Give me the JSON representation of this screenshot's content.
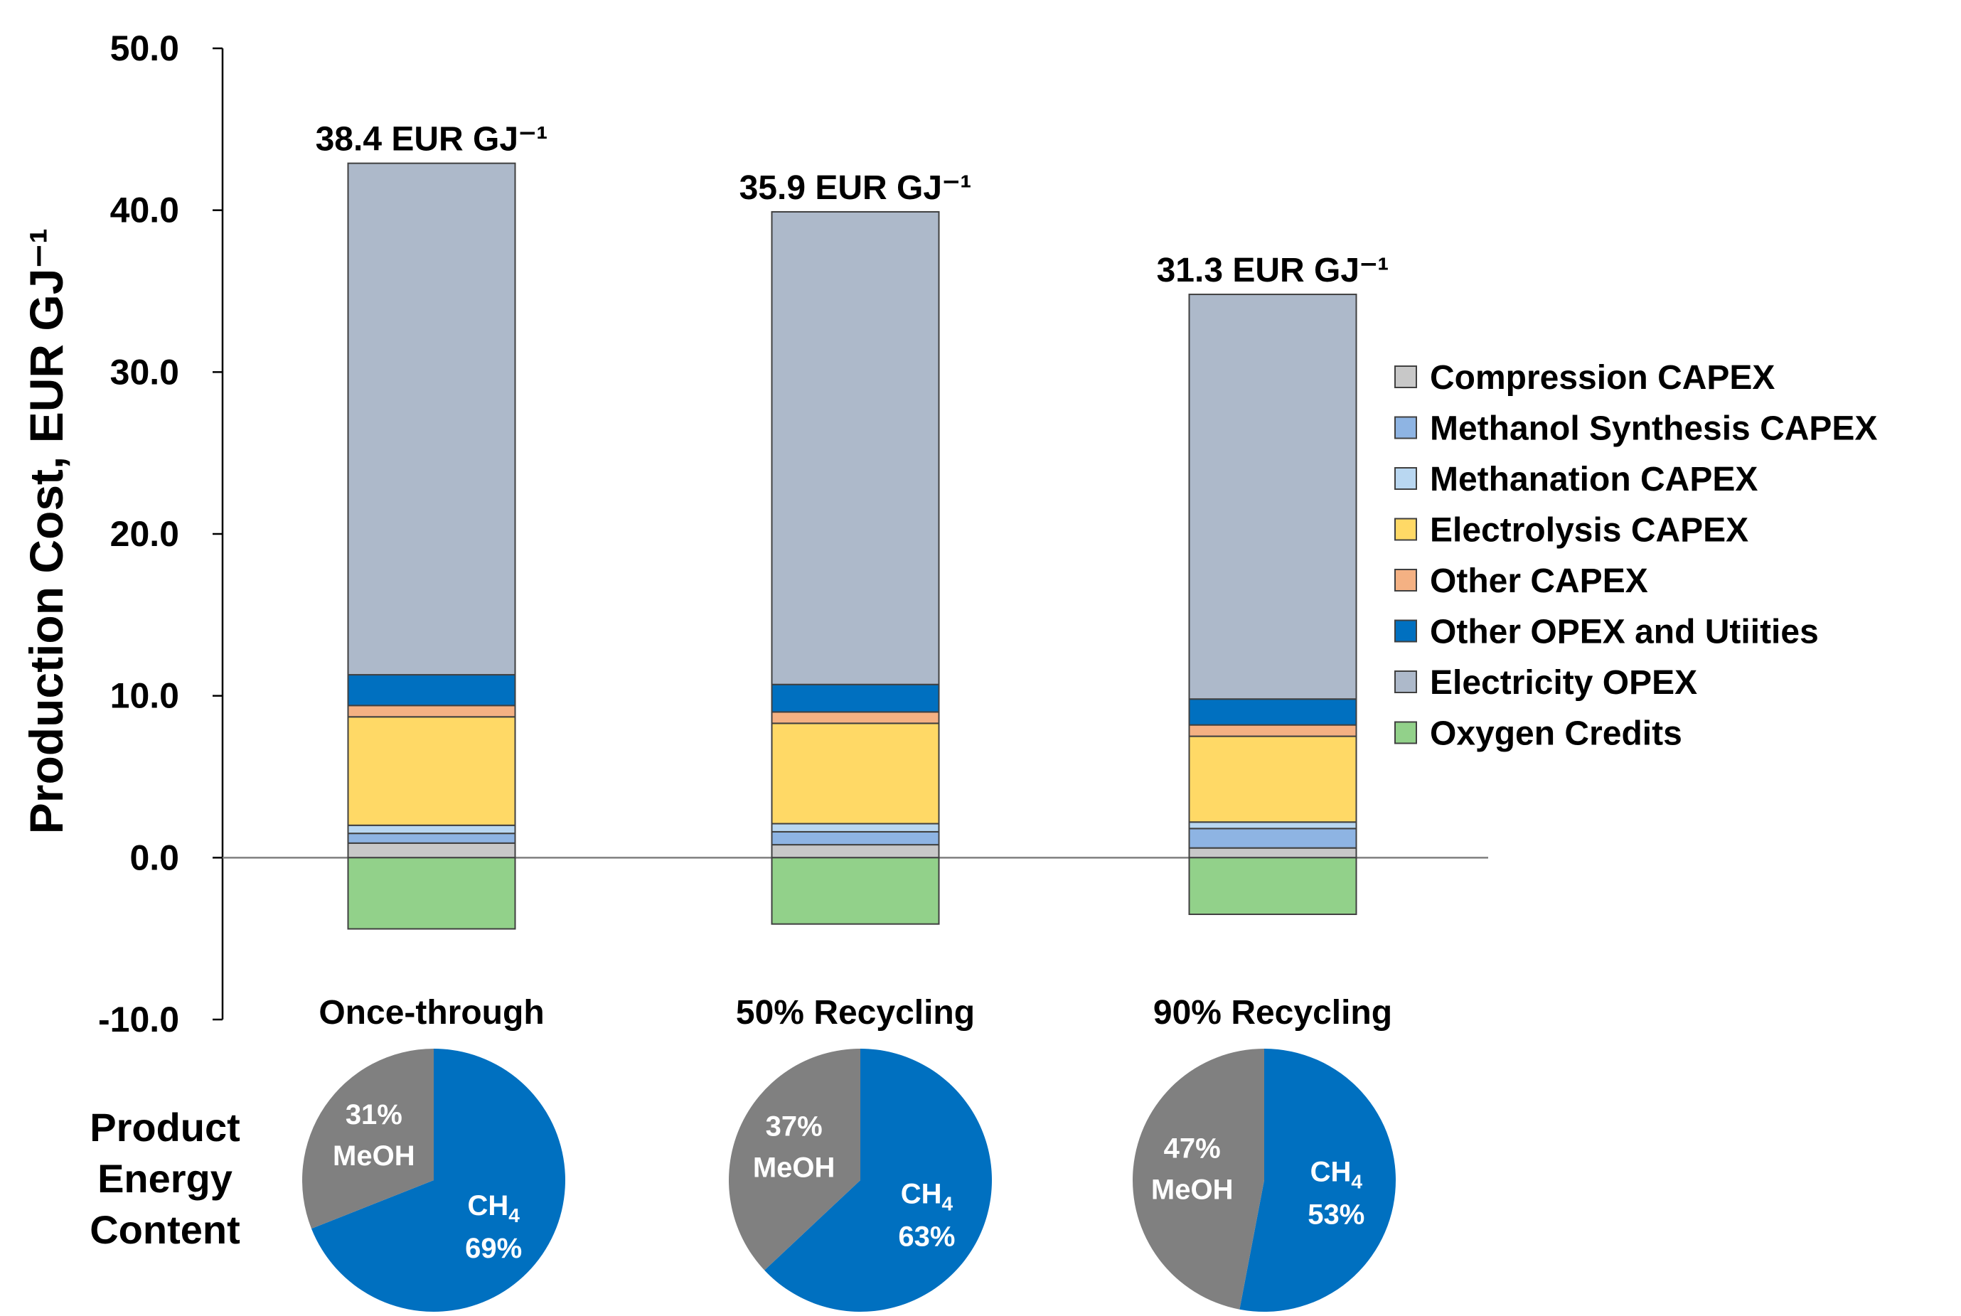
{
  "chart_data": {
    "type": "bar",
    "stacked": true,
    "ylabel": "Production Cost, EUR GJ⁻¹",
    "ylim": [
      -10,
      50
    ],
    "ytick_step": 10,
    "yticks": [
      "-10.0",
      "0.0",
      "10.0",
      "20.0",
      "30.0",
      "40.0",
      "50.0"
    ],
    "categories": [
      "Once-through",
      "50% Recycling",
      "90% Recycling"
    ],
    "totals": [
      "38.4 EUR GJ⁻¹",
      "35.9 EUR GJ⁻¹",
      "31.3 EUR GJ⁻¹"
    ],
    "legend_position": "right",
    "series": [
      {
        "name": "Compression CAPEX",
        "color": "#c8c8c8",
        "values": [
          0.9,
          0.8,
          0.6
        ]
      },
      {
        "name": "Methanol Synthesis CAPEX",
        "color": "#8eb4e3",
        "values": [
          0.6,
          0.8,
          1.2
        ]
      },
      {
        "name": "Methanation CAPEX",
        "color": "#b9d7f1",
        "values": [
          0.5,
          0.5,
          0.4
        ]
      },
      {
        "name": "Electrolysis CAPEX",
        "color": "#ffd966",
        "values": [
          6.7,
          6.2,
          5.3
        ]
      },
      {
        "name": "Other CAPEX",
        "color": "#f4b183",
        "values": [
          0.7,
          0.7,
          0.7
        ]
      },
      {
        "name": "Other OPEX and Utiities",
        "color": "#0070c0",
        "values": [
          1.9,
          1.7,
          1.6
        ]
      },
      {
        "name": "Electricity OPEX",
        "color": "#adb9ca",
        "values": [
          31.6,
          29.2,
          25.0
        ]
      },
      {
        "name": "Oxygen Credits",
        "color": "#92d18a",
        "values": [
          -4.4,
          -4.1,
          -3.5
        ]
      }
    ],
    "pies_label": [
      "Product",
      "Energy",
      "Content"
    ],
    "pies": [
      {
        "ch4_pct": 69,
        "meoh_pct": 31,
        "ch4_label": "69%",
        "meoh_label": "31%"
      },
      {
        "ch4_pct": 63,
        "meoh_pct": 37,
        "ch4_label": "63%",
        "meoh_label": "37%"
      },
      {
        "ch4_pct": 53,
        "meoh_pct": 47,
        "ch4_label": "53%",
        "meoh_label": "47%"
      }
    ],
    "pie_colors": {
      "ch4": "#0070c0",
      "meoh": "#808080"
    },
    "pie_names": {
      "ch4": "CH",
      "ch4_sub": "4",
      "meoh": "MeOH"
    }
  }
}
